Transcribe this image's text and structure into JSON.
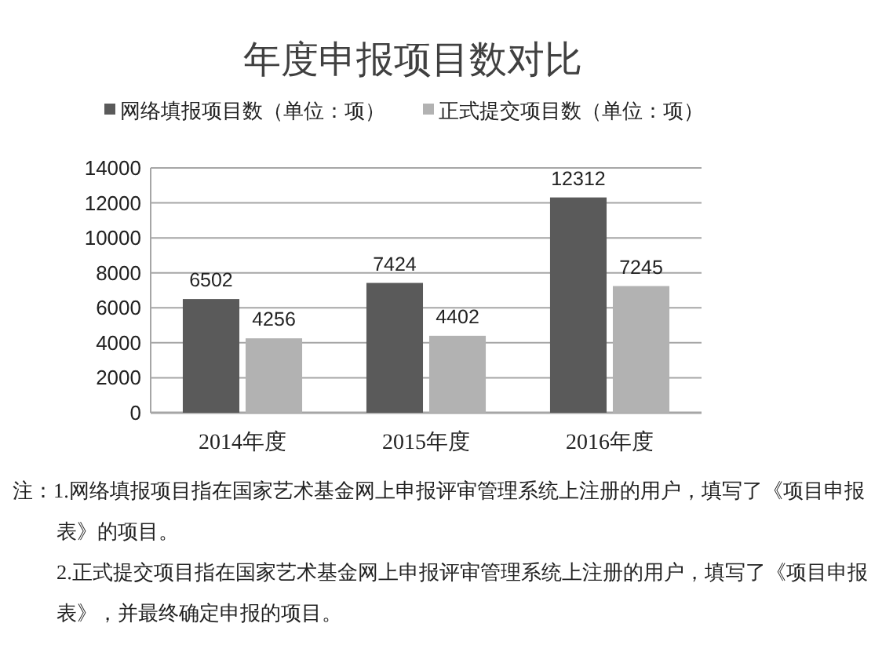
{
  "chart_data": {
    "type": "bar",
    "title": "年度申报项目数对比",
    "categories": [
      "2014年度",
      "2015年度",
      "2016年度"
    ],
    "series": [
      {
        "name": "网络填报项目数（单位：项）",
        "color": "#5a5a5a",
        "values": [
          6502,
          7424,
          12312
        ]
      },
      {
        "name": "正式提交项目数（单位：项）",
        "color": "#b2b2b2",
        "values": [
          4256,
          4402,
          7245
        ]
      }
    ],
    "ylim": [
      0,
      14000
    ],
    "yticks": [
      0,
      2000,
      4000,
      6000,
      8000,
      10000,
      12000,
      14000
    ],
    "grid": "y",
    "legend": "top",
    "data_labels": true,
    "annotations": [
      "注：1.网络填报项目指在国家艺术基金网上申报评审管理系统上注册的用户，填写了《项目申报表》的项目。",
      "2.正式提交项目指在国家艺术基金网上申报评审管理系统上注册的用户，填写了《项目申报表》，并最终确定申报的项目。"
    ]
  }
}
